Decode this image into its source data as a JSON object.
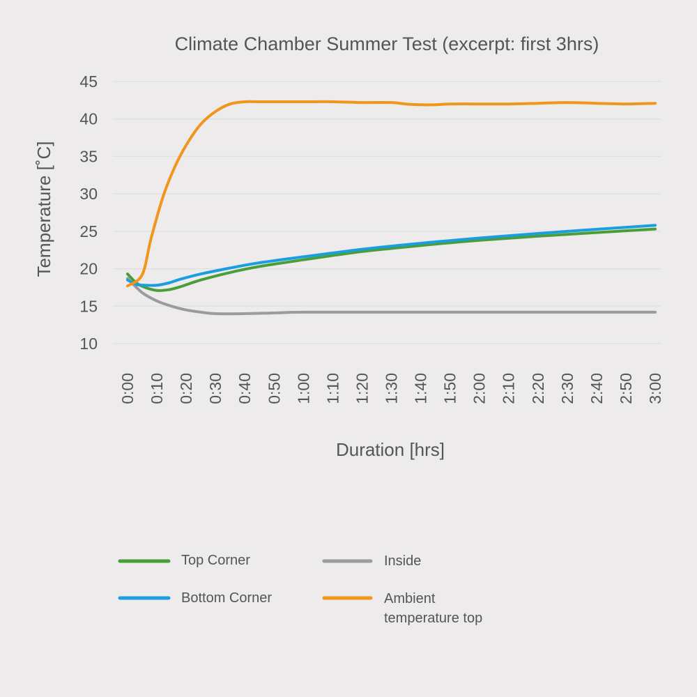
{
  "chart_data": {
    "type": "line",
    "title": "Climate Chamber Summer Test (excerpt: first 3hrs)",
    "xlabel": "Duration [hrs]",
    "ylabel": "Temperature [˚C]",
    "x_unit": "minutes",
    "xlim": [
      0,
      180
    ],
    "ylim": [
      10,
      45
    ],
    "y_ticks": [
      10,
      15,
      20,
      25,
      30,
      35,
      40,
      45
    ],
    "x_ticks": [
      0,
      10,
      20,
      30,
      40,
      50,
      60,
      70,
      80,
      90,
      100,
      110,
      120,
      130,
      140,
      150,
      160,
      170,
      180
    ],
    "x_tick_labels": [
      "0:00",
      "0:10",
      "0:20",
      "0:30",
      "0:40",
      "0:50",
      "1:00",
      "1:10",
      "1:20",
      "1:30",
      "1:40",
      "1:50",
      "2:00",
      "2:10",
      "2:20",
      "2:30",
      "2:40",
      "2:50",
      "3:00"
    ],
    "grid": "horizontal",
    "legend_position": "bottom",
    "series": [
      {
        "name": "Top Corner",
        "color": "#4a9e3a",
        "x": [
          0,
          3,
          6,
          10,
          14,
          18,
          25,
          35,
          45,
          60,
          80,
          100,
          120,
          150,
          180
        ],
        "y": [
          19.3,
          18.1,
          17.5,
          17.1,
          17.2,
          17.6,
          18.5,
          19.5,
          20.3,
          21.2,
          22.3,
          23.1,
          23.8,
          24.6,
          25.3
        ]
      },
      {
        "name": "Inside",
        "color": "#9b9b9b",
        "x": [
          0,
          5,
          10,
          15,
          20,
          25,
          30,
          40,
          50,
          60,
          90,
          120,
          150,
          180
        ],
        "y": [
          18.7,
          16.8,
          15.7,
          15.0,
          14.5,
          14.2,
          14.0,
          14.0,
          14.1,
          14.2,
          14.2,
          14.2,
          14.2,
          14.2
        ]
      },
      {
        "name": "Bottom Corner",
        "color": "#1a9ee0",
        "x": [
          0,
          3,
          6,
          10,
          14,
          18,
          25,
          35,
          45,
          60,
          80,
          100,
          120,
          150,
          180
        ],
        "y": [
          18.5,
          17.9,
          17.8,
          17.8,
          18.1,
          18.6,
          19.3,
          20.1,
          20.8,
          21.6,
          22.6,
          23.4,
          24.1,
          25.0,
          25.8
        ]
      },
      {
        "name": "Ambient temperature top",
        "color": "#f0961c",
        "x": [
          0,
          5,
          8,
          12,
          16,
          20,
          25,
          30,
          35,
          40,
          45,
          50,
          60,
          70,
          80,
          90,
          95,
          100,
          105,
          110,
          120,
          130,
          140,
          150,
          160,
          170,
          180
        ],
        "y": [
          17.7,
          19.2,
          24.0,
          29.5,
          33.5,
          36.5,
          39.3,
          41.0,
          42.0,
          42.3,
          42.3,
          42.3,
          42.3,
          42.3,
          42.2,
          42.2,
          42.0,
          41.9,
          41.9,
          42.0,
          42.0,
          42.0,
          42.1,
          42.2,
          42.1,
          42.0,
          42.1
        ]
      }
    ]
  },
  "legend": {
    "items": [
      {
        "label": "Top Corner",
        "color": "#4a9e3a"
      },
      {
        "label": "Inside",
        "color": "#9b9b9b"
      },
      {
        "label": "Bottom Corner",
        "color": "#1a9ee0"
      },
      {
        "label_line1": "Ambient",
        "label_line2": "temperature top",
        "color": "#f0961c"
      }
    ]
  }
}
